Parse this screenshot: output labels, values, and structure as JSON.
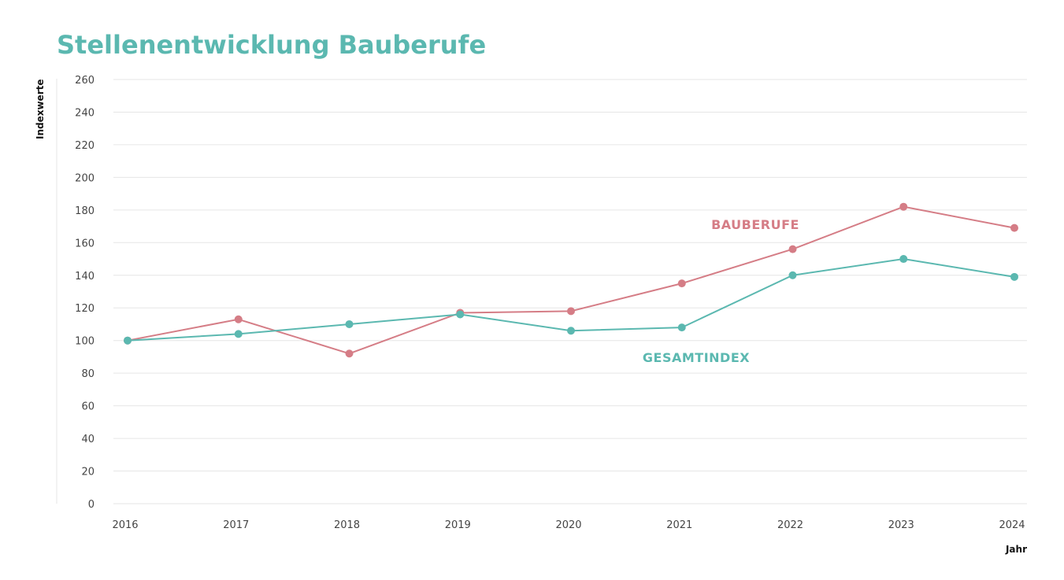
{
  "chart_data": {
    "type": "line",
    "title": "Stellenentwicklung Bauberufe",
    "xlabel": "Jahr",
    "ylabel": "Indexwerte",
    "ylim": [
      0,
      260
    ],
    "yticks": [
      "0",
      "20",
      "40",
      "60",
      "80",
      "100",
      "120",
      "140",
      "160",
      "180",
      "200",
      "220",
      "240",
      "260"
    ],
    "categories": [
      "2016",
      "2017",
      "2018",
      "2019",
      "2020",
      "2021",
      "2022",
      "2023",
      "2024"
    ],
    "grid": true,
    "series": [
      {
        "name": "BAUBERUFE",
        "color": "#d57d86",
        "values": [
          100,
          113,
          92,
          117,
          118,
          135,
          156,
          182,
          169
        ]
      },
      {
        "name": "GESAMTINDEX",
        "color": "#5bb8b0",
        "values": [
          100,
          104,
          110,
          116,
          106,
          108,
          140,
          150,
          139
        ]
      }
    ]
  }
}
